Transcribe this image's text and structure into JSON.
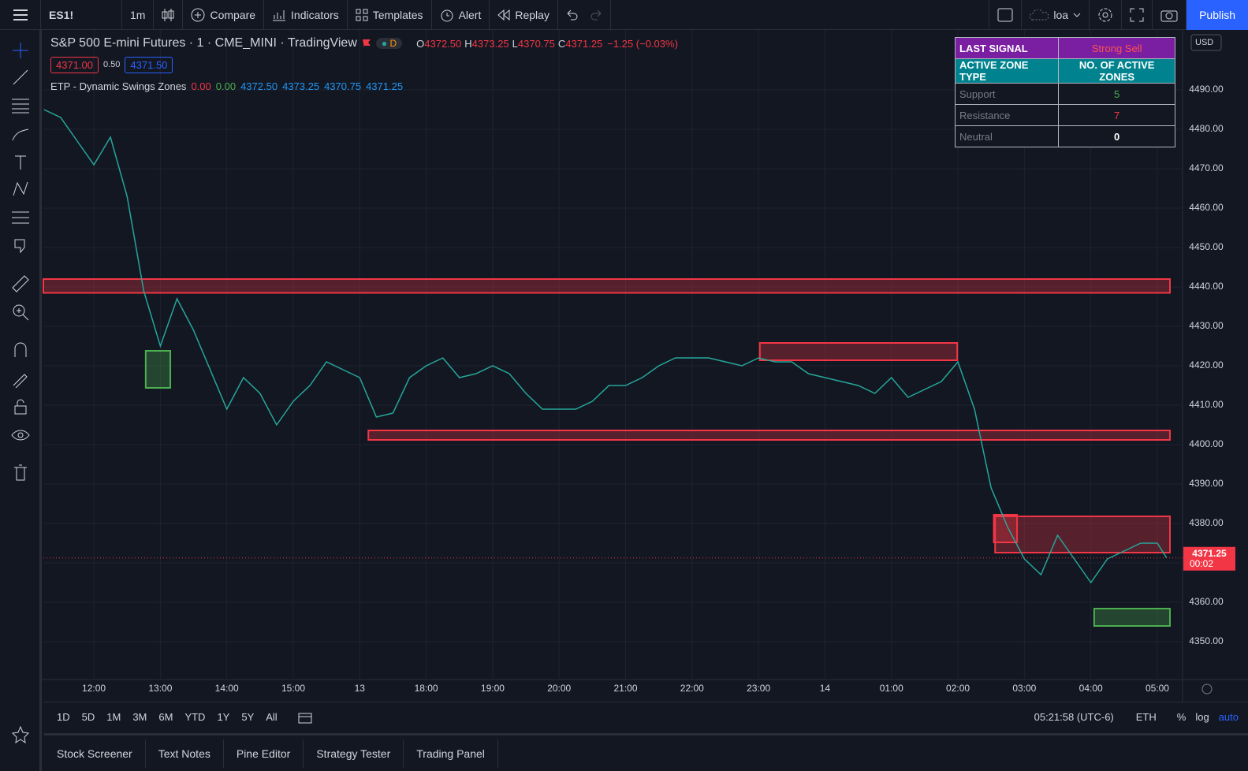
{
  "toolbar": {
    "symbol": "ES1!",
    "interval": "1m",
    "items": [
      "Compare",
      "Indicators",
      "Templates",
      "Alert",
      "Replay"
    ],
    "layout": "loa",
    "publish": "Publish"
  },
  "legend": {
    "title": "S&P 500 E-mini Futures · 1 · CME_MINI · TradingView",
    "badge": "D",
    "ohlc": [
      {
        "key": "O",
        "text": "4372.50"
      },
      {
        "key": "H",
        "text": "4373.25"
      },
      {
        "key": "L",
        "text": "4370.75"
      },
      {
        "key": "C",
        "text": "4371.25"
      }
    ],
    "change": "−1.25 (−0.03%)",
    "bid": "4371.00",
    "spread": "0.50",
    "ask": "4371.50",
    "indicator": "ETP - Dynamic Swings Zones",
    "indicator_values": [
      "0.00",
      "0.00",
      "4372.50",
      "4373.25",
      "4370.75",
      "4371.25"
    ]
  },
  "table": {
    "rows": [
      [
        "LAST SIGNAL",
        "Strong Sell"
      ],
      [
        "ACTIVE ZONE TYPE",
        "NO. OF ACTIVE ZONES"
      ],
      [
        "Support",
        5
      ],
      [
        "Resistance",
        7
      ],
      [
        "Neutral",
        0
      ]
    ]
  },
  "chart_data": {
    "type": "line",
    "color": "#26a69a",
    "x": [
      -0.75,
      -0.5,
      -0.25,
      0,
      0.25,
      0.5,
      0.75,
      1,
      1.25,
      1.5,
      1.75,
      2,
      2.25,
      2.5,
      2.75,
      3,
      3.25,
      3.5,
      3.75,
      4,
      4.25,
      4.5,
      4.75,
      5,
      5.25,
      5.5,
      5.75,
      6,
      6.25,
      6.5,
      6.75,
      7,
      7.25,
      7.5,
      7.75,
      8,
      8.25,
      8.5,
      8.75,
      9,
      9.25,
      9.5,
      9.75,
      10,
      10.25,
      10.5,
      10.75,
      11,
      11.25,
      11.5,
      11.75,
      12,
      12.25,
      12.5,
      12.75,
      13,
      13.25,
      13.5,
      13.75,
      14,
      14.25,
      14.5,
      14.75,
      15,
      15.25,
      15.5,
      15.75,
      16,
      16.14
    ],
    "values": [
      4485,
      4483,
      4477,
      4471,
      4478,
      4463,
      4439,
      4425,
      4437,
      4429,
      4419,
      4409,
      4417,
      4413,
      4405,
      4411,
      4415,
      4421,
      4419,
      4417,
      4407,
      4408,
      4417,
      4420,
      4422,
      4417,
      4418,
      4420,
      4418,
      4413,
      4409,
      4409,
      4409,
      4411,
      4415,
      4415,
      4417,
      4420,
      4422,
      4422,
      4422,
      4421,
      4420,
      4422,
      4421,
      4421,
      4418,
      4417,
      4416,
      4415,
      4413,
      4417,
      4412,
      4414,
      4416,
      4421,
      4409,
      4389,
      4379,
      4371,
      4367,
      4377,
      4371,
      4365,
      4371,
      4373,
      4375,
      4375,
      4371.25
    ],
    "xlim": [
      -0.76,
      16.38
    ],
    "ylim": [
      4340.4,
      4505.2
    ],
    "xticks": [
      {
        "value": 0,
        "label": "12:00"
      },
      {
        "value": 1,
        "label": "13:00"
      },
      {
        "value": 2,
        "label": "14:00"
      },
      {
        "value": 3,
        "label": "15:00"
      },
      {
        "value": 4,
        "label": "13"
      },
      {
        "value": 5,
        "label": "18:00"
      },
      {
        "value": 6,
        "label": "19:00"
      },
      {
        "value": 7,
        "label": "20:00"
      },
      {
        "value": 8,
        "label": "21:00"
      },
      {
        "value": 9,
        "label": "22:00"
      },
      {
        "value": 10,
        "label": "23:00"
      },
      {
        "value": 11,
        "label": "14"
      },
      {
        "value": 12,
        "label": "01:00"
      },
      {
        "value": 13,
        "label": "02:00"
      },
      {
        "value": 14,
        "label": "03:00"
      },
      {
        "value": 15,
        "label": "04:00"
      },
      {
        "value": 16,
        "label": "05:00"
      }
    ],
    "yticks": [
      {
        "value": 4350,
        "label": "4350.00"
      },
      {
        "value": 4360,
        "label": "4360.00"
      },
      {
        "value": 4370,
        "label": "4370.00"
      },
      {
        "value": 4380,
        "label": "4380.00"
      },
      {
        "value": 4390,
        "label": "4390.00"
      },
      {
        "value": 4400,
        "label": "4400.00"
      },
      {
        "value": 4410,
        "label": "4410.00"
      },
      {
        "value": 4420,
        "label": "4420.00"
      },
      {
        "value": 4430,
        "label": "4430.00"
      },
      {
        "value": 4440,
        "label": "4440.00"
      },
      {
        "value": 4450,
        "label": "4450.00"
      },
      {
        "value": 4460,
        "label": "4460.00"
      },
      {
        "value": 4470,
        "label": "4470.00"
      },
      {
        "value": 4480,
        "label": "4480.00"
      },
      {
        "value": 4490,
        "label": "4490.00"
      }
    ],
    "grid": true,
    "zone_colors": {
      "resistance": "#f23645",
      "support": "#4caf50"
    },
    "zones": [
      {
        "kind": "resistance",
        "x": [
          -0.76,
          16.19
        ],
        "range": [
          4438.5,
          4442
        ]
      },
      {
        "kind": "resistance",
        "x": [
          10.02,
          12.99
        ],
        "range": [
          4421.4,
          4425.8
        ]
      },
      {
        "kind": "resistance",
        "x": [
          4.13,
          16.19
        ],
        "range": [
          4401.2,
          4403.6
        ]
      },
      {
        "kind": "resistance",
        "x": [
          13.56,
          16.19
        ],
        "range": [
          4372.6,
          4381.8
        ]
      },
      {
        "kind": "resistance",
        "x": [
          13.54,
          13.89
        ],
        "range": [
          4375.2,
          4382.2
        ]
      },
      {
        "kind": "support",
        "x": [
          0.78,
          1.15
        ],
        "range": [
          4414.4,
          4423.8
        ]
      },
      {
        "kind": "support",
        "x": [
          15.05,
          16.19
        ],
        "range": [
          4354,
          4358.4
        ]
      }
    ],
    "last_price": {
      "value": 4371.25,
      "countdown": "00:02",
      "color": "#f23645"
    },
    "currency": "USD"
  },
  "ranges": [
    "1D",
    "5D",
    "1M",
    "3M",
    "6M",
    "YTD",
    "1Y",
    "5Y",
    "All"
  ],
  "status": {
    "time": "05:21:58 (UTC-6)",
    "session": "ETH",
    "percent": "%",
    "log": "log",
    "auto": "auto"
  },
  "tabs": [
    "Stock Screener",
    "Text Notes",
    "Pine Editor",
    "Strategy Tester",
    "Trading Panel"
  ]
}
